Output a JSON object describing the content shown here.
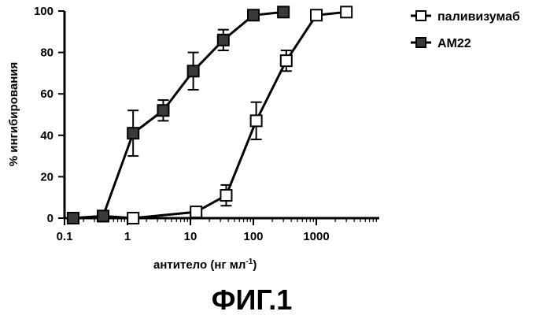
{
  "chart_data": {
    "type": "line",
    "xscale": "log",
    "xlabel_main": "антитело (нг мл",
    "xlabel_sup": "-1",
    "xlabel_end": ")",
    "ylabel": "% ингибирования",
    "xlim": [
      0.1,
      10000
    ],
    "ylim": [
      0,
      100
    ],
    "xticks": [
      0.1,
      1,
      10,
      100,
      1000
    ],
    "xtick_labels": [
      "0.1",
      "1",
      "10",
      "100",
      "1000"
    ],
    "yticks": [
      0,
      20,
      40,
      60,
      80,
      100
    ],
    "ytick_labels": [
      "0",
      "20",
      "40",
      "60",
      "80",
      "100"
    ],
    "legend_position": "top-right",
    "caption": "ФИГ.1",
    "series": [
      {
        "name": "паливизумаб",
        "marker": "open-square",
        "color": "#000000",
        "x": [
          0.137,
          0.41,
          1.23,
          12.3,
          37,
          111,
          333,
          1000,
          3000
        ],
        "y": [
          0,
          1,
          0,
          3,
          11,
          47,
          76,
          98,
          99.5
        ],
        "err": [
          0,
          0,
          0,
          0,
          5,
          9,
          5,
          0,
          0
        ]
      },
      {
        "name": "AM22",
        "marker": "filled-square",
        "color": "#3a3a3a",
        "x": [
          0.137,
          0.41,
          1.23,
          3.7,
          11.1,
          33.3,
          100,
          300
        ],
        "y": [
          0,
          1,
          41,
          52,
          71,
          86,
          98,
          99.5
        ],
        "err": [
          0,
          0,
          11,
          5,
          9,
          5,
          0,
          0
        ]
      }
    ]
  }
}
